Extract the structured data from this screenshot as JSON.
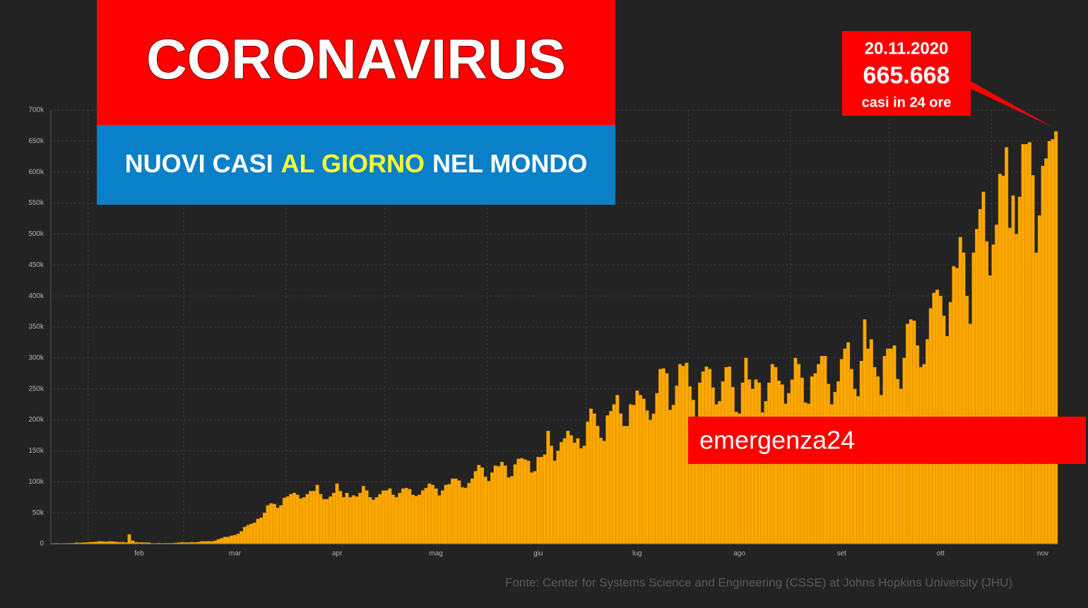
{
  "chart_data": {
    "type": "bar",
    "title": "CORONAVIRUS",
    "subtitle_start": "NUOVI CASI",
    "subtitle_highlight": "AL GIORNO",
    "subtitle_end": "NEL MONDO",
    "annotation": {
      "date": "20.11.2020",
      "text": "665.668",
      "caption": "casi in 24 ore"
    },
    "brand": "emergenza24",
    "source": "Fonte: Center for Systems Science and Engineering (CSSE) at Johns Hopkins University (JHU)",
    "color": "#fca800",
    "grid": true,
    "ylim": [
      0,
      700000
    ],
    "yticks": [
      0,
      {
        "value": 50000,
        "label": "50k"
      },
      {
        "value": 100000,
        "label": "100k"
      },
      {
        "value": 150000,
        "label": "150k"
      },
      {
        "value": 200000,
        "label": "200k"
      },
      {
        "value": 250000,
        "label": "250k"
      },
      {
        "value": 300000,
        "label": "300k"
      },
      {
        "value": 350000,
        "label": "350k"
      },
      {
        "value": 400000,
        "label": "400k"
      },
      {
        "value": 450000,
        "label": "450k"
      },
      {
        "value": 500000,
        "label": "500k"
      },
      {
        "value": 550000,
        "label": "550k"
      },
      {
        "value": 600000,
        "label": "600k"
      },
      {
        "value": 650000,
        "label": "650k"
      },
      {
        "value": 700000,
        "label": "700k"
      }
    ],
    "categories": [
      null,
      null,
      null,
      null,
      null,
      null,
      null,
      null,
      null,
      null,
      null,
      null,
      null,
      null,
      null,
      null,
      null,
      null,
      null,
      null,
      null,
      null,
      null,
      null,
      null,
      "feb",
      null,
      null,
      null,
      null,
      null,
      null,
      null,
      null,
      null,
      null,
      null,
      null,
      null,
      null,
      null,
      null,
      null,
      null,
      null,
      null,
      null,
      null,
      null,
      null,
      null,
      null,
      null,
      null,
      "mar",
      null,
      null,
      null,
      null,
      null,
      null,
      null,
      null,
      null,
      null,
      null,
      null,
      null,
      null,
      null,
      null,
      null,
      null,
      null,
      null,
      null,
      null,
      null,
      null,
      null,
      null,
      null,
      null,
      null,
      null,
      "apr",
      null,
      null,
      null,
      null,
      null,
      null,
      null,
      null,
      null,
      null,
      null,
      null,
      null,
      null,
      null,
      null,
      null,
      null,
      null,
      null,
      null,
      null,
      null,
      null,
      null,
      null,
      null,
      null,
      null,
      "mag",
      null,
      null,
      null,
      null,
      null,
      null,
      null,
      null,
      null,
      null,
      null,
      null,
      null,
      null,
      null,
      null,
      null,
      null,
      null,
      null,
      null,
      null,
      null,
      null,
      null,
      null,
      null,
      null,
      null,
      null,
      "giu",
      null,
      null,
      null,
      null,
      null,
      null,
      null,
      null,
      null,
      null,
      null,
      null,
      null,
      null,
      null,
      null,
      null,
      null,
      null,
      null,
      null,
      null,
      null,
      null,
      null,
      null,
      null,
      null,
      null,
      "lug",
      null,
      null,
      null,
      null,
      null,
      null,
      null,
      null,
      null,
      null,
      null,
      null,
      null,
      null,
      null,
      null,
      null,
      null,
      null,
      null,
      null,
      null,
      null,
      null,
      null,
      null,
      null,
      null,
      null,
      null,
      "ago",
      null,
      null,
      null,
      null,
      null,
      null,
      null,
      null,
      null,
      null,
      null,
      null,
      null,
      null,
      null,
      null,
      null,
      null,
      null,
      null,
      null,
      null,
      null,
      null,
      null,
      null,
      null,
      null,
      null,
      null,
      "set",
      null,
      null,
      null,
      null,
      null,
      null,
      null,
      null,
      null,
      null,
      null,
      null,
      null,
      null,
      null,
      null,
      null,
      null,
      null,
      null,
      null,
      null,
      null,
      null,
      null,
      null,
      null,
      null,
      null,
      "ott",
      null,
      null,
      null,
      null,
      null,
      null,
      null,
      null,
      null,
      null,
      null,
      null,
      null,
      null,
      null,
      null,
      null,
      null,
      null,
      null,
      null,
      null,
      null,
      null,
      null,
      null,
      null,
      null,
      null,
      null,
      "nov",
      null,
      null,
      null,
      null
    ],
    "values": [
      600,
      100,
      300,
      500,
      700,
      800,
      1700,
      1300,
      1800,
      2100,
      2600,
      2800,
      3200,
      3900,
      3700,
      3200,
      3900,
      3700,
      3100,
      2600,
      2500,
      2100,
      15000,
      5000,
      2600,
      2100,
      2000,
      1800,
      1700,
      550,
      600,
      1000,
      600,
      800,
      900,
      1000,
      1300,
      1800,
      2400,
      2000,
      2000,
      2500,
      2200,
      2800,
      3900,
      3900,
      4000,
      3800,
      4800,
      7000,
      9000,
      11000,
      11000,
      13000,
      14000,
      16000,
      20000,
      27000,
      30000,
      32000,
      34000,
      40000,
      42000,
      50000,
      62000,
      65000,
      64000,
      58000,
      62000,
      74000,
      76000,
      80000,
      82000,
      79000,
      73000,
      75000,
      80000,
      85000,
      85000,
      95000,
      80000,
      72000,
      72000,
      76000,
      82000,
      97000,
      85000,
      75000,
      82000,
      75000,
      78000,
      76000,
      82000,
      93000,
      86000,
      75000,
      71000,
      75000,
      80000,
      86000,
      86000,
      89000,
      79000,
      75000,
      82000,
      89000,
      90000,
      88000,
      79000,
      77000,
      79000,
      86000,
      90000,
      97000,
      95000,
      89000,
      78000,
      86000,
      95000,
      96000,
      105000,
      105000,
      102000,
      91000,
      90000,
      98000,
      105000,
      117000,
      127000,
      123000,
      108000,
      101000,
      115000,
      126000,
      125000,
      132000,
      126000,
      107000,
      109000,
      128000,
      137000,
      138000,
      136000,
      134000,
      115000,
      117000,
      140000,
      140000,
      144000,
      182000,
      158000,
      134000,
      150000,
      164000,
      170000,
      182000,
      175000,
      163000,
      170000,
      154000,
      158000,
      197000,
      218000,
      210000,
      190000,
      171000,
      166000,
      207000,
      214000,
      225000,
      240000,
      210000,
      190000,
      190000,
      225000,
      224000,
      247000,
      240000,
      234000,
      215000,
      200000,
      210000,
      243000,
      282000,
      283000,
      275000,
      216000,
      224000,
      255000,
      290000,
      287000,
      292000,
      254000,
      232000,
      205000,
      260000,
      278000,
      286000,
      282000,
      252000,
      225000,
      230000,
      262000,
      285000,
      286000,
      253000,
      213000,
      210000,
      260000,
      300000,
      265000,
      250000,
      265000,
      260000,
      212000,
      230000,
      260000,
      290000,
      285000,
      263000,
      257000,
      226000,
      243000,
      265000,
      300000,
      290000,
      268000,
      228000,
      226000,
      270000,
      275000,
      290000,
      303000,
      303000,
      258000,
      225000,
      245000,
      262000,
      298000,
      315000,
      325000,
      282000,
      250000,
      238000,
      295000,
      362000,
      315000,
      330000,
      285000,
      270000,
      240000,
      303000,
      315000,
      315000,
      320000,
      266000,
      250000,
      300000,
      355000,
      362000,
      360000,
      320000,
      285000,
      290000,
      330000,
      380000,
      405000,
      410000,
      400000,
      368000,
      335000,
      390000,
      448000,
      445000,
      495000,
      470000,
      400000,
      355000,
      470000,
      508000,
      540000,
      568000,
      488000,
      433000,
      483000,
      515000,
      597000,
      594000,
      640000,
      510000,
      562000,
      500000,
      560000,
      645000,
      645000,
      648000,
      595000,
      470000,
      530000,
      610000,
      622000,
      650000,
      653000,
      665668
    ]
  }
}
